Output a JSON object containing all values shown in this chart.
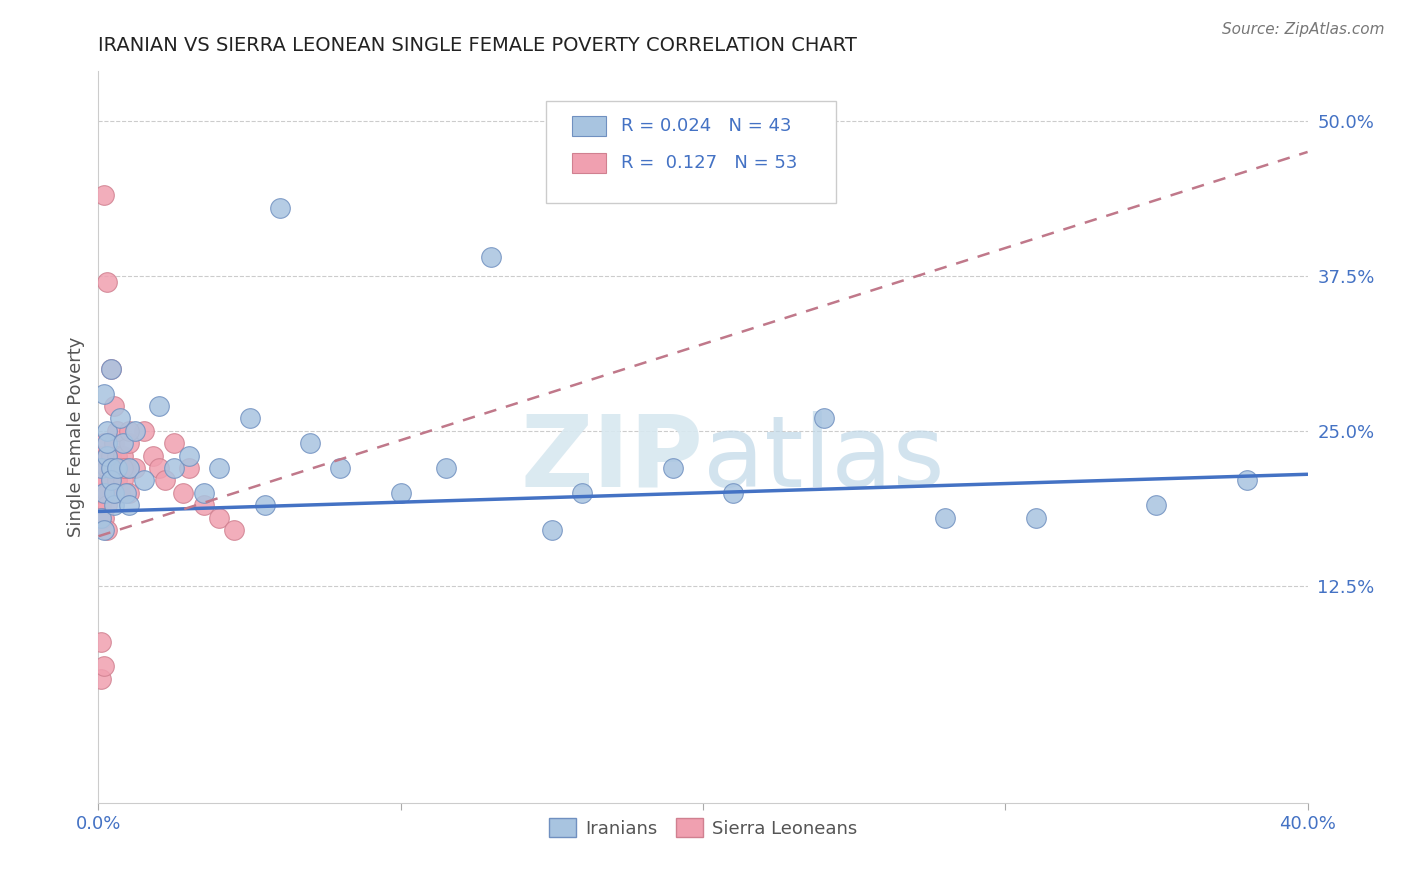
{
  "title": "IRANIAN VS SIERRA LEONEAN SINGLE FEMALE POVERTY CORRELATION CHART",
  "source": "Source: ZipAtlas.com",
  "ylabel": "Single Female Poverty",
  "xlim": [
    0.0,
    0.4
  ],
  "ylim": [
    -0.05,
    0.54
  ],
  "xtick_positions": [
    0.0,
    0.1,
    0.2,
    0.3,
    0.4
  ],
  "xtick_labels": [
    "0.0%",
    "",
    "",
    "",
    "40.0%"
  ],
  "ytick_right": [
    0.125,
    0.25,
    0.375,
    0.5
  ],
  "ytick_right_labels": [
    "12.5%",
    "25.0%",
    "37.5%",
    "50.0%"
  ],
  "watermark_zip": "ZIP",
  "watermark_atlas": "atlas",
  "legend_text1": "R = 0.024   N = 43",
  "legend_text2": "R =  0.127   N = 53",
  "color_iranian": "#a8c4e0",
  "color_sierra": "#f0a0b0",
  "color_line_iranian": "#4472c4",
  "color_line_sierra": "#c0788a",
  "color_text_blue": "#4472c4",
  "iran_line_x": [
    0.0,
    0.4
  ],
  "iran_line_y": [
    0.185,
    0.215
  ],
  "sierra_line_x": [
    0.0,
    0.4
  ],
  "sierra_line_y": [
    0.165,
    0.475
  ],
  "iranians_x": [
    0.004,
    0.001,
    0.002,
    0.003,
    0.001,
    0.002,
    0.003,
    0.005,
    0.004,
    0.003,
    0.002,
    0.004,
    0.005,
    0.006,
    0.007,
    0.008,
    0.009,
    0.01,
    0.01,
    0.012,
    0.015,
    0.02,
    0.025,
    0.03,
    0.035,
    0.04,
    0.05,
    0.055,
    0.06,
    0.07,
    0.08,
    0.1,
    0.115,
    0.13,
    0.15,
    0.16,
    0.19,
    0.21,
    0.24,
    0.28,
    0.31,
    0.35,
    0.38
  ],
  "iranians_y": [
    0.3,
    0.22,
    0.28,
    0.25,
    0.18,
    0.2,
    0.23,
    0.19,
    0.22,
    0.24,
    0.17,
    0.21,
    0.2,
    0.22,
    0.26,
    0.24,
    0.2,
    0.22,
    0.19,
    0.25,
    0.21,
    0.27,
    0.22,
    0.23,
    0.2,
    0.22,
    0.26,
    0.19,
    0.43,
    0.24,
    0.22,
    0.2,
    0.22,
    0.39,
    0.17,
    0.2,
    0.22,
    0.2,
    0.26,
    0.18,
    0.18,
    0.19,
    0.21
  ],
  "sierra_x": [
    0.001,
    0.001,
    0.001,
    0.001,
    0.001,
    0.002,
    0.002,
    0.002,
    0.002,
    0.003,
    0.003,
    0.003,
    0.003,
    0.004,
    0.004,
    0.004,
    0.005,
    0.005,
    0.005,
    0.006,
    0.006,
    0.006,
    0.007,
    0.007,
    0.008,
    0.008,
    0.009,
    0.01,
    0.01,
    0.012,
    0.015,
    0.018,
    0.02,
    0.022,
    0.025,
    0.028,
    0.03,
    0.035,
    0.04,
    0.045,
    0.002,
    0.003,
    0.004,
    0.005,
    0.006,
    0.008,
    0.01,
    0.001,
    0.002,
    0.003,
    0.001,
    0.001,
    0.002
  ],
  "sierra_y": [
    0.22,
    0.19,
    0.21,
    0.2,
    0.23,
    0.24,
    0.22,
    0.21,
    0.2,
    0.23,
    0.22,
    0.2,
    0.19,
    0.23,
    0.21,
    0.22,
    0.24,
    0.2,
    0.22,
    0.21,
    0.23,
    0.22,
    0.2,
    0.22,
    0.23,
    0.21,
    0.22,
    0.24,
    0.2,
    0.22,
    0.25,
    0.23,
    0.22,
    0.21,
    0.24,
    0.2,
    0.22,
    0.19,
    0.18,
    0.17,
    0.44,
    0.37,
    0.3,
    0.27,
    0.25,
    0.22,
    0.25,
    0.18,
    0.18,
    0.17,
    0.08,
    0.05,
    0.06
  ]
}
